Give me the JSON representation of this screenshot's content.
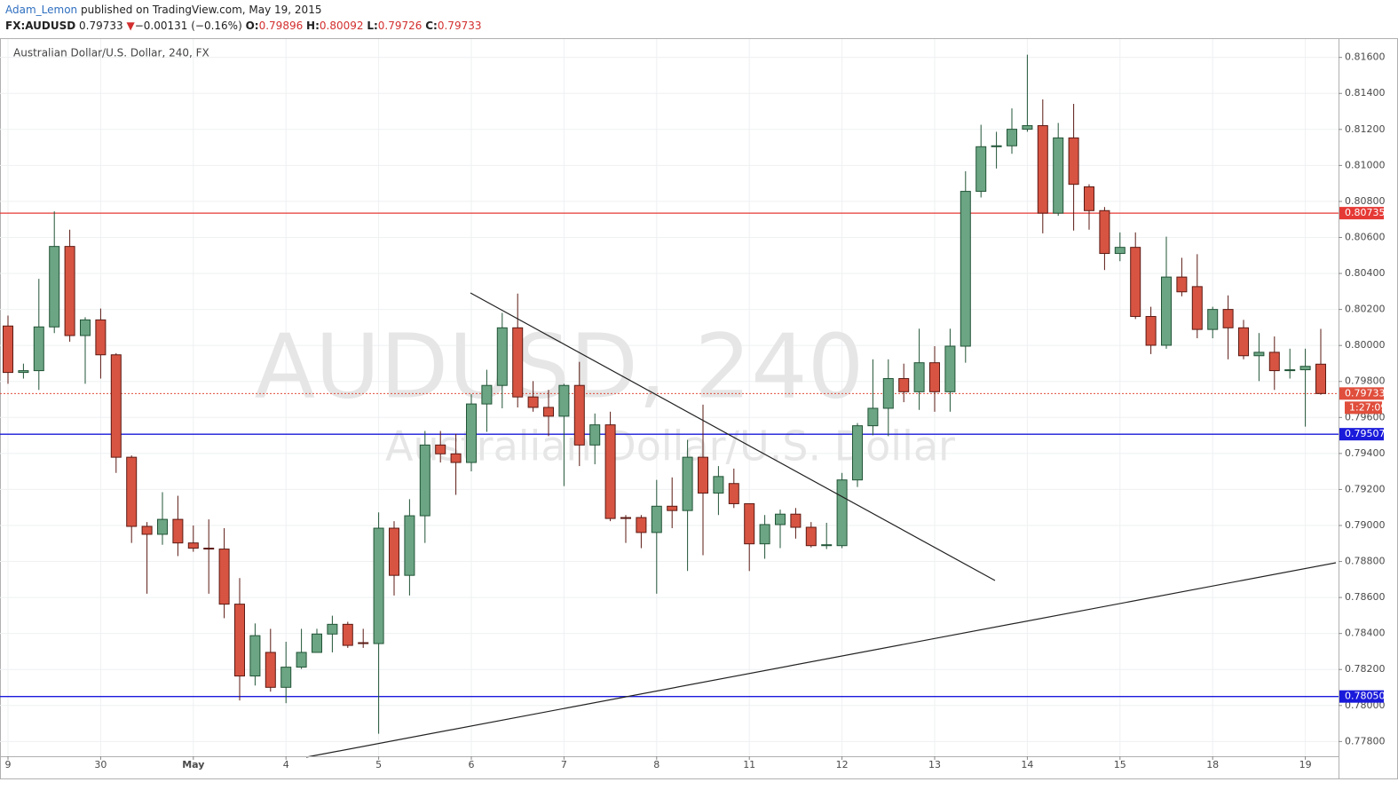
{
  "header": {
    "author": "Adam_Lemon",
    "published": "published on TradingView.com, May 19, 2015",
    "symbol": "FX:AUDUSD",
    "last": "0.79733",
    "arrow": "▼",
    "change": "−0.00131 (−0.16%)",
    "ohlc": [
      {
        "label": "O:",
        "value": "0.79896"
      },
      {
        "label": "H:",
        "value": "0.80092"
      },
      {
        "label": "L:",
        "value": "0.79726"
      },
      {
        "label": "C:",
        "value": "0.79733"
      }
    ]
  },
  "chart_data": {
    "type": "candlestick",
    "title": "Australian Dollar/U.S. Dollar, 240, FX",
    "watermark": "AUDUSD, 240",
    "watermark_subtitle": "Australian Dollar/U.S. Dollar",
    "up_color": "#6ba583",
    "up_border": "#225437",
    "down_color": "#d75442",
    "down_border": "#5b1a13",
    "categories": [
      "9",
      null,
      null,
      null,
      null,
      null,
      "30",
      null,
      null,
      null,
      null,
      null,
      "May",
      null,
      null,
      null,
      null,
      null,
      "4",
      null,
      null,
      null,
      null,
      null,
      "5",
      null,
      null,
      null,
      null,
      null,
      "6",
      null,
      null,
      null,
      null,
      null,
      "7",
      null,
      null,
      null,
      null,
      null,
      "8",
      null,
      null,
      null,
      null,
      null,
      "11",
      null,
      null,
      null,
      null,
      null,
      "12",
      null,
      null,
      null,
      null,
      null,
      "13",
      null,
      null,
      null,
      null,
      null,
      "14",
      null,
      null,
      null,
      null,
      null,
      "15",
      null,
      null,
      null,
      null,
      null,
      "18",
      null,
      null,
      null,
      null,
      null,
      "19",
      null
    ],
    "ohlc": [
      [
        0.80108,
        0.80166,
        0.79787,
        0.7985
      ],
      [
        0.7985,
        0.79899,
        0.79816,
        0.7986
      ],
      [
        0.7986,
        0.8037,
        0.79753,
        0.80103
      ],
      [
        0.80103,
        0.80745,
        0.80069,
        0.8055
      ],
      [
        0.8055,
        0.80643,
        0.80021,
        0.80055
      ],
      [
        0.80055,
        0.80157,
        0.79787,
        0.80142
      ],
      [
        0.80142,
        0.80205,
        0.79816,
        0.79948
      ],
      [
        0.79948,
        0.79957,
        0.79292,
        0.79379
      ],
      [
        0.79379,
        0.79389,
        0.78903,
        0.78995
      ],
      [
        0.78995,
        0.79019,
        0.78621,
        0.78951
      ],
      [
        0.78951,
        0.79185,
        0.78893,
        0.79034
      ],
      [
        0.79034,
        0.79165,
        0.7883,
        0.78903
      ],
      [
        0.78903,
        0.79,
        0.78854,
        0.78874
      ],
      [
        0.78874,
        0.79034,
        0.78621,
        0.78869
      ],
      [
        0.78869,
        0.78985,
        0.78485,
        0.78563
      ],
      [
        0.78563,
        0.78708,
        0.78028,
        0.78164
      ],
      [
        0.78164,
        0.78456,
        0.78111,
        0.78388
      ],
      [
        0.78295,
        0.78426,
        0.78077,
        0.78101
      ],
      [
        0.78101,
        0.78354,
        0.78013,
        0.78213
      ],
      [
        0.78213,
        0.78426,
        0.78203,
        0.78295
      ],
      [
        0.78295,
        0.78426,
        0.78295,
        0.78397
      ],
      [
        0.78397,
        0.78499,
        0.78295,
        0.78451
      ],
      [
        0.78451,
        0.78465,
        0.7832,
        0.78334
      ],
      [
        0.78349,
        0.78426,
        0.7832,
        0.78344
      ],
      [
        0.78344,
        0.79073,
        0.77843,
        0.78985
      ],
      [
        0.78985,
        0.79024,
        0.78611,
        0.78723
      ],
      [
        0.78723,
        0.79146,
        0.78611,
        0.79054
      ],
      [
        0.79054,
        0.79525,
        0.78903,
        0.79447
      ],
      [
        0.79447,
        0.79525,
        0.7935,
        0.79398
      ],
      [
        0.79398,
        0.7951,
        0.7917,
        0.7935
      ],
      [
        0.7935,
        0.79729,
        0.79301,
        0.79675
      ],
      [
        0.79675,
        0.79865,
        0.7952,
        0.79778
      ],
      [
        0.79778,
        0.80181,
        0.79651,
        0.80098
      ],
      [
        0.80098,
        0.80288,
        0.79656,
        0.79714
      ],
      [
        0.79714,
        0.79802,
        0.79632,
        0.79656
      ],
      [
        0.79656,
        0.79753,
        0.79496,
        0.79607
      ],
      [
        0.79607,
        0.79787,
        0.79219,
        0.79778
      ],
      [
        0.79778,
        0.79909,
        0.7933,
        0.79447
      ],
      [
        0.79447,
        0.79622,
        0.7934,
        0.79559
      ],
      [
        0.79559,
        0.79632,
        0.79024,
        0.79039
      ],
      [
        0.79044,
        0.79058,
        0.78903,
        0.79039
      ],
      [
        0.79044,
        0.79058,
        0.78874,
        0.78961
      ],
      [
        0.78961,
        0.79253,
        0.78621,
        0.79107
      ],
      [
        0.79107,
        0.79267,
        0.78985,
        0.79083
      ],
      [
        0.79083,
        0.79476,
        0.78747,
        0.79379
      ],
      [
        0.79379,
        0.79671,
        0.78835,
        0.7918
      ],
      [
        0.7918,
        0.7933,
        0.79058,
        0.79272
      ],
      [
        0.79233,
        0.79316,
        0.79097,
        0.79121
      ],
      [
        0.79121,
        0.79121,
        0.78747,
        0.78898
      ],
      [
        0.78898,
        0.79058,
        0.78815,
        0.79005
      ],
      [
        0.79005,
        0.79088,
        0.78874,
        0.79063
      ],
      [
        0.79063,
        0.79097,
        0.78927,
        0.7899
      ],
      [
        0.7899,
        0.79019,
        0.78878,
        0.78888
      ],
      [
        0.78888,
        0.79015,
        0.78869,
        0.78893
      ],
      [
        0.78888,
        0.79292,
        0.78874,
        0.79253
      ],
      [
        0.79253,
        0.79569,
        0.79214,
        0.79554
      ],
      [
        0.79554,
        0.79923,
        0.79501,
        0.79651
      ],
      [
        0.79651,
        0.79923,
        0.79496,
        0.79816
      ],
      [
        0.79816,
        0.79899,
        0.79685,
        0.79743
      ],
      [
        0.79743,
        0.80093,
        0.79642,
        0.79904
      ],
      [
        0.79904,
        0.79996,
        0.79632,
        0.79743
      ],
      [
        0.79743,
        0.80093,
        0.79632,
        0.79996
      ],
      [
        0.79996,
        0.80968,
        0.79904,
        0.80856
      ],
      [
        0.80856,
        0.81226,
        0.80822,
        0.81104
      ],
      [
        0.81104,
        0.81187,
        0.80983,
        0.81109
      ],
      [
        0.81109,
        0.81317,
        0.81065,
        0.81201
      ],
      [
        0.81201,
        0.81615,
        0.81187,
        0.81221
      ],
      [
        0.81221,
        0.81367,
        0.80623,
        0.80735
      ],
      [
        0.80735,
        0.81236,
        0.8072,
        0.81153
      ],
      [
        0.81153,
        0.81342,
        0.80638,
        0.80895
      ],
      [
        0.80881,
        0.80895,
        0.80643,
        0.80749
      ],
      [
        0.80749,
        0.80769,
        0.80419,
        0.80511
      ],
      [
        0.80511,
        0.80628,
        0.80468,
        0.80545
      ],
      [
        0.80545,
        0.80628,
        0.80147,
        0.80161
      ],
      [
        0.80161,
        0.80215,
        0.79952,
        0.80001
      ],
      [
        0.80001,
        0.80604,
        0.79982,
        0.8038
      ],
      [
        0.8038,
        0.80487,
        0.80273,
        0.80298
      ],
      [
        0.80327,
        0.80507,
        0.8004,
        0.80089
      ],
      [
        0.80089,
        0.80215,
        0.8004,
        0.802
      ],
      [
        0.802,
        0.80278,
        0.79923,
        0.80098
      ],
      [
        0.80098,
        0.80142,
        0.79923,
        0.79943
      ],
      [
        0.79943,
        0.80069,
        0.79802,
        0.79962
      ],
      [
        0.79962,
        0.8005,
        0.79753,
        0.7986
      ],
      [
        0.7986,
        0.79982,
        0.79816,
        0.79865
      ],
      [
        0.79865,
        0.79982,
        0.79549,
        0.79884
      ],
      [
        0.79896,
        0.80092,
        0.79726,
        0.79733
      ]
    ],
    "ylim": [
      0.77718,
      0.81702
    ],
    "yticks": [
      {
        "value": 0.778,
        "label": "0.77800"
      },
      {
        "value": 0.78,
        "label": "0.78000"
      },
      {
        "value": 0.782,
        "label": "0.78200"
      },
      {
        "value": 0.784,
        "label": "0.78400"
      },
      {
        "value": 0.786,
        "label": "0.78600"
      },
      {
        "value": 0.788,
        "label": "0.78800"
      },
      {
        "value": 0.79,
        "label": "0.79000"
      },
      {
        "value": 0.792,
        "label": "0.79200"
      },
      {
        "value": 0.794,
        "label": "0.79400"
      },
      {
        "value": 0.796,
        "label": "0.79600"
      },
      {
        "value": 0.798,
        "label": "0.79800"
      },
      {
        "value": 0.8,
        "label": "0.80000"
      },
      {
        "value": 0.802,
        "label": "0.80200"
      },
      {
        "value": 0.804,
        "label": "0.80400"
      },
      {
        "value": 0.806,
        "label": "0.80600"
      },
      {
        "value": 0.808,
        "label": "0.80800"
      },
      {
        "value": 0.81,
        "label": "0.81000"
      },
      {
        "value": 0.812,
        "label": "0.81200"
      },
      {
        "value": 0.814,
        "label": "0.81400"
      },
      {
        "value": 0.816,
        "label": "0.81600"
      }
    ],
    "grid": true,
    "levels": [
      {
        "value": 0.80735,
        "label": "0.80735",
        "color": "#e53935"
      },
      {
        "value": 0.79507,
        "label": "0.79507",
        "color": "#1a1adb"
      },
      {
        "value": 0.7805,
        "label": "0.78050",
        "color": "#1a1adb"
      }
    ],
    "last_price": {
      "value": 0.79733,
      "label": "0.79733",
      "color": "#e04e3c"
    },
    "countdown": "1:27:09"
  }
}
